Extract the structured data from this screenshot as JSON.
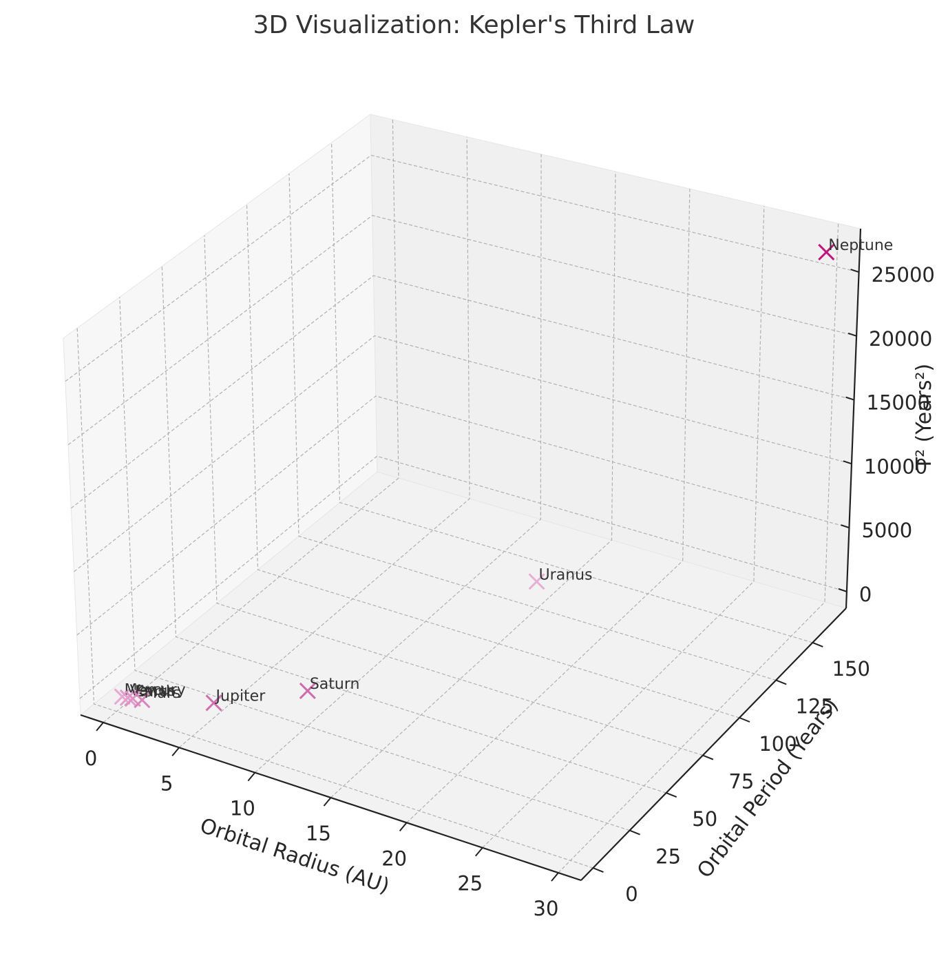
{
  "chart_data": {
    "type": "scatter",
    "projection": "3d",
    "title": "3D Visualization: Kepler's Third Law",
    "xlabel": "Orbital Radius (AU)",
    "ylabel": "Orbital Period (Years)",
    "zlabel": "T² (Years²)",
    "xlim": [
      -1.5,
      31.5
    ],
    "ylim": [
      -8.2,
      172.9
    ],
    "zlim": [
      -1300,
      28400
    ],
    "xticks": [
      0,
      5,
      10,
      15,
      20,
      25,
      30
    ],
    "yticks": [
      0,
      25,
      50,
      75,
      100,
      125,
      150
    ],
    "zticks": [
      0,
      5000,
      10000,
      15000,
      20000,
      25000
    ],
    "grid": true,
    "marker": "x",
    "series": [
      {
        "points": [
          {
            "label": "Mercury",
            "x": 0.39,
            "y": 0.24,
            "z": 0.06,
            "color": "#e7a8d2"
          },
          {
            "label": "Venus",
            "x": 0.72,
            "y": 0.62,
            "z": 0.38,
            "color": "#e39ccb"
          },
          {
            "label": "Earth",
            "x": 1.0,
            "y": 1.0,
            "z": 1.0,
            "color": "#df92c6"
          },
          {
            "label": "Mars",
            "x": 1.52,
            "y": 1.88,
            "z": 3.53,
            "color": "#d984bd"
          },
          {
            "label": "Jupiter",
            "x": 5.2,
            "y": 11.86,
            "z": 140.7,
            "color": "#d06eb0"
          },
          {
            "label": "Saturn",
            "x": 9.58,
            "y": 29.46,
            "z": 867.9,
            "color": "#cf6aae"
          },
          {
            "label": "Uranus",
            "x": 19.22,
            "y": 84.01,
            "z": 7057.7,
            "color": "#e6b0d5"
          },
          {
            "label": "Neptune",
            "x": 30.05,
            "y": 164.8,
            "z": 27159,
            "color": "#c0157f"
          }
        ]
      }
    ]
  }
}
